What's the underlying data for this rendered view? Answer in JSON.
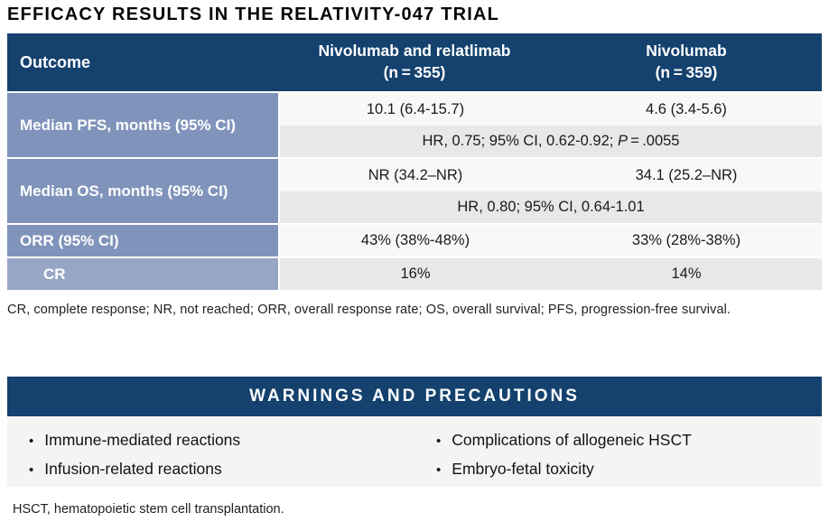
{
  "page_title": "EFFICACY RESULTS IN THE RELATIVITY-047 TRIAL",
  "efficacy_table": {
    "header": {
      "outcome_label": "Outcome",
      "arm1_name": "Nivolumab and relatlimab",
      "arm1_n": "(n = 355)",
      "arm2_name": "Nivolumab",
      "arm2_n": "(n = 359)"
    },
    "pfs": {
      "label": "Median PFS, months (95% CI)",
      "arm1_value": "10.1 (6.4-15.7)",
      "arm2_value": "4.6 (3.4-5.6)",
      "hr_text": "HR, 0.75; 95% CI, 0.62-0.92; ",
      "p_label": "P",
      "p_value": " = .0055"
    },
    "os": {
      "label": "Median OS, months (95% CI)",
      "arm1_value": "NR (34.2–NR)",
      "arm2_value": "34.1 (25.2–NR)",
      "hr_text": "HR, 0.80; 95% CI, 0.64-1.01"
    },
    "orr": {
      "label": "ORR (95% CI)",
      "arm1_value": "43% (38%-48%)",
      "arm2_value": "33% (28%-38%)"
    },
    "cr": {
      "label": "CR",
      "arm1_value": "16%",
      "arm2_value": "14%"
    },
    "footnote": "CR, complete response; NR, not reached; ORR, overall response rate; OS, overall survival; PFS, progression-free survival."
  },
  "warnings": {
    "title": "WARNINGS AND PRECAUTIONS",
    "bullets_left": [
      "Immune-mediated reactions",
      "Infusion-related reactions"
    ],
    "bullets_right": [
      "Complications of allogeneic HSCT",
      "Embryo-fetal toxicity"
    ],
    "footnote": "HSCT, hematopoietic stem cell transplantation."
  },
  "glyphs": {
    "bullet": "•"
  },
  "colors": {
    "navy": "#14416e",
    "row_label_blue": "#8094bb",
    "row_label_blue_light": "#97a6c5",
    "value_row_light": "#f8f8f7",
    "value_row_gray": "#e8e8e7",
    "bullet_panel_bg": "#f4f4f3"
  }
}
